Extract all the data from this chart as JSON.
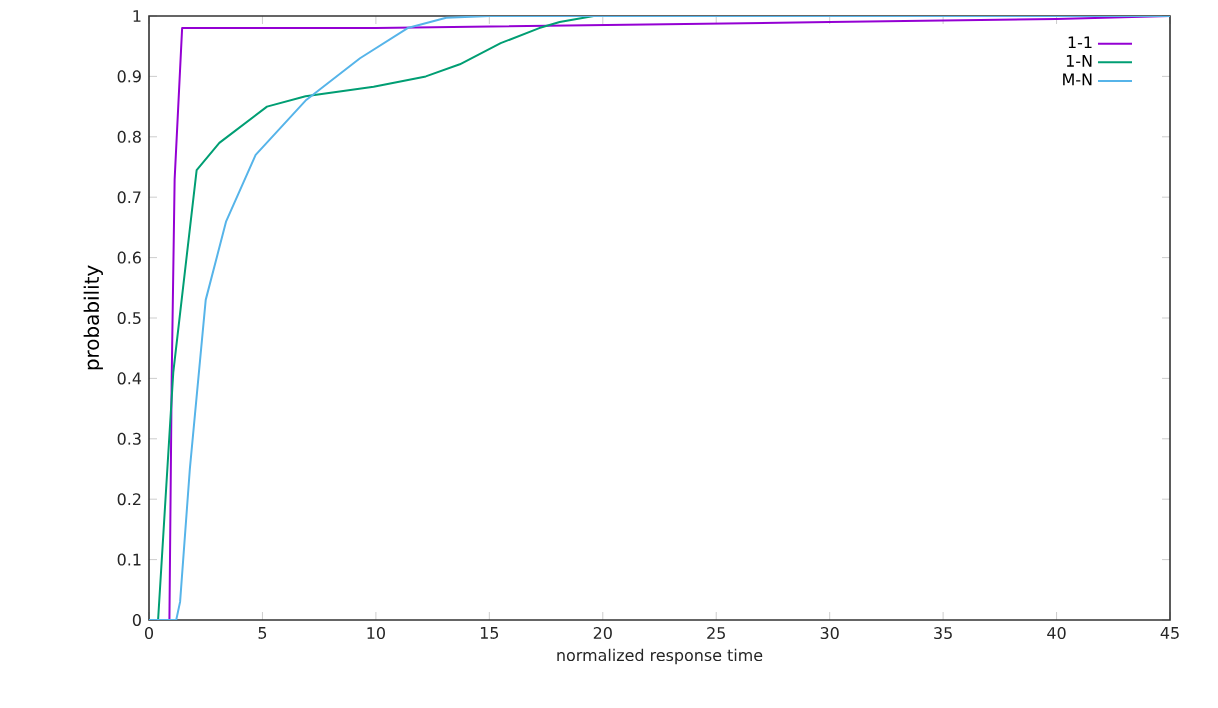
{
  "chart_data": {
    "type": "line",
    "xlabel": "normalized response time",
    "ylabel": "probability",
    "xlim": [
      0,
      45
    ],
    "ylim": [
      0,
      1
    ],
    "xticks": [
      0,
      5,
      10,
      15,
      20,
      25,
      30,
      35,
      40,
      45
    ],
    "yticks": [
      0,
      0.1,
      0.2,
      0.3,
      0.4,
      0.5,
      0.6,
      0.7,
      0.8,
      0.9,
      1
    ],
    "legend": "top right",
    "grid": false,
    "series": [
      {
        "name": "1-1",
        "color": "#9400d3",
        "x": [
          0,
          0.9,
          1.0,
          1.13,
          1.46,
          10,
          20,
          30,
          40,
          45
        ],
        "values": [
          0,
          0,
          0.4,
          0.73,
          0.98,
          0.98,
          0.985,
          0.99,
          0.995,
          1
        ]
      },
      {
        "name": "1-N",
        "color": "#009e73",
        "x": [
          0,
          0.4,
          1.07,
          2.1,
          3.1,
          5.2,
          6.9,
          9.9,
          12.2,
          13.7,
          15.5,
          17.2,
          18.1,
          19.6,
          25,
          45
        ],
        "values": [
          0,
          0,
          0.41,
          0.745,
          0.79,
          0.85,
          0.867,
          0.883,
          0.9,
          0.92,
          0.955,
          0.98,
          0.99,
          1,
          1,
          1
        ]
      },
      {
        "name": "M-N",
        "color": "#56b4e9",
        "x": [
          0,
          1.2,
          1.37,
          1.8,
          2.5,
          3.4,
          4.7,
          6.9,
          9.3,
          11.4,
          13.1,
          15,
          45
        ],
        "values": [
          0,
          0,
          0.03,
          0.25,
          0.53,
          0.66,
          0.77,
          0.86,
          0.93,
          0.98,
          0.997,
          1,
          1
        ]
      }
    ]
  }
}
